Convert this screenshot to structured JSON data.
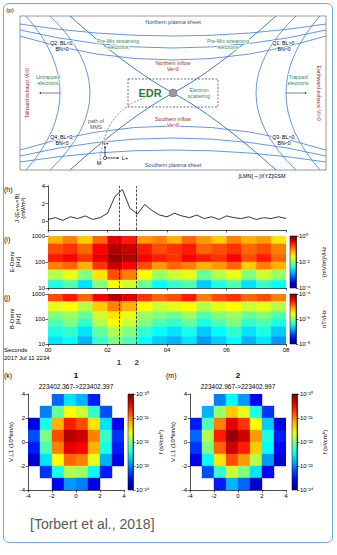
{
  "diagram": {
    "panel_label": "(p)",
    "northern_sheet": "Northern plasma sheet",
    "southern_sheet": "Southern plasma sheet",
    "q1": "Q1: BL>0, BN>0",
    "q2": "Q2: BL<0, BN>0",
    "q3": "Q3: BL>0, BN<0",
    "q4": "Q4: BL<0, BN<0",
    "streaming": "Pre-Mix streaming electrons",
    "northern_inflow": "Northern inflow Ve<0",
    "southern_inflow": "Southern inflow Ve>0",
    "tailward": "Tailward exhaust Vi<0",
    "earthward": "Earthward exhaust Vi>0",
    "untrapped": "Untrapped electrons",
    "trapped": "Trapped electrons",
    "path": "path of MMS",
    "edr": "EDR",
    "scattering": "Electron scattering",
    "frame": "[LMN] ~ [XYZ]GSM",
    "axis_n": "N+",
    "axis_l": "L+",
    "axis_m": "M"
  },
  "time_markers": {
    "line_style": "dashed",
    "items": [
      {
        "label": "1",
        "x": 2.382
      },
      {
        "label": "2",
        "x": 2.982
      }
    ]
  },
  "chart_data": [
    {
      "panel": "(h)",
      "type": "line",
      "y_label": "J·(E+vₑ×B)",
      "y_unit": "(nW/m³)",
      "x": [
        0,
        0.25,
        0.5,
        0.75,
        1,
        1.25,
        1.5,
        1.75,
        2,
        2.25,
        2.5,
        2.75,
        3,
        3.25,
        3.5,
        3.75,
        4,
        4.25,
        4.5,
        4.75,
        5,
        5.25,
        5.5,
        5.75,
        6,
        6.25,
        6.5,
        6.75,
        7,
        7.25,
        7.5,
        7.75,
        8
      ],
      "values": [
        0.2,
        0.4,
        0.1,
        0.5,
        0.3,
        0.6,
        0.2,
        0.4,
        0.9,
        2.8,
        3.6,
        1.5,
        0.8,
        1.9,
        1.2,
        0.7,
        0.5,
        0.9,
        0.6,
        0.4,
        0.7,
        0.3,
        0.5,
        0.2,
        0.6,
        0.4,
        0.3,
        0.5,
        0.2,
        0.4,
        0.3,
        0.5,
        0.3
      ],
      "color": "#000000",
      "line_style": "solid",
      "xlim": [
        0,
        8
      ],
      "xticks": [
        {
          "value": 0,
          "label": "00"
        },
        {
          "value": 2,
          "label": "02"
        },
        {
          "value": 4,
          "label": "04"
        },
        {
          "value": 6,
          "label": "06"
        },
        {
          "value": 8,
          "label": "08"
        }
      ],
      "ylim": [
        -1,
        4
      ],
      "yticks": [
        0,
        2,
        4
      ],
      "tick_labels": "y"
    },
    {
      "panel": "(i)",
      "type": "heatmap",
      "y_label": "E-Omni",
      "y_unit": "[Hz]",
      "log": "y",
      "x_edges": [
        0,
        0.5,
        1,
        1.5,
        2,
        2.5,
        3,
        3.5,
        4,
        4.5,
        5,
        5.5,
        6,
        6.5,
        7,
        7.5,
        8
      ],
      "y_edges": [
        1000,
        500,
        200,
        100,
        50,
        20,
        10
      ],
      "cells": [
        [
          -1.2,
          -1.0,
          -1.3,
          -0.9,
          -0.4,
          -0.6,
          -1.1,
          -1.0,
          -1.2,
          -0.9,
          -1.1,
          -1.3,
          -1.0,
          -1.2,
          -1.1,
          -1.4
        ],
        [
          -0.8,
          -0.7,
          -0.9,
          -0.5,
          -0.2,
          -0.3,
          -0.6,
          -0.8,
          -0.7,
          -0.6,
          -0.9,
          -0.8,
          -0.7,
          -0.9,
          -0.8,
          -1.0
        ],
        [
          -0.6,
          -0.5,
          -0.7,
          -0.4,
          -0.1,
          -0.2,
          -0.5,
          -0.6,
          -0.7,
          -0.5,
          -0.6,
          -0.7,
          -0.5,
          -0.8,
          -0.6,
          -0.9
        ],
        [
          -1.0,
          -0.9,
          -1.2,
          -0.7,
          -0.3,
          -0.5,
          -0.8,
          -1.1,
          -0.9,
          -1.0,
          -1.2,
          -1.1,
          -0.9,
          -1.3,
          -1.0,
          -1.2
        ],
        [
          -1.8,
          -1.6,
          -2.0,
          -1.4,
          -0.8,
          -1.0,
          -1.5,
          -1.9,
          -1.7,
          -1.6,
          -2.1,
          -1.8,
          -1.6,
          -2.0,
          -1.7,
          -1.9
        ],
        [
          -2.4,
          -2.2,
          -2.6,
          -2.0,
          -1.5,
          -1.7,
          -2.1,
          -2.5,
          -2.3,
          -2.2,
          -2.7,
          -2.4,
          -2.2,
          -2.6,
          -2.3,
          -2.5
        ]
      ],
      "xlim": [
        0,
        8
      ],
      "xticks": [
        {
          "value": 0,
          "label": "00"
        },
        {
          "value": 2,
          "label": "02"
        },
        {
          "value": 4,
          "label": "04"
        },
        {
          "value": 6,
          "label": "06"
        },
        {
          "value": 8,
          "label": "08"
        }
      ],
      "ylim": [
        10,
        1000
      ],
      "yticks": [
        10,
        100,
        1000
      ],
      "tick_labels": "y",
      "colorbar": {
        "label": "(mV/m)²/Hz",
        "range": [
          -4,
          0
        ],
        "ticks": [
          {
            "value": -4,
            "label": "10⁻⁴"
          },
          {
            "value": -2,
            "label": "10⁻²"
          },
          {
            "value": 0,
            "label": "10⁰"
          }
        ]
      }
    },
    {
      "panel": "(j)",
      "type": "heatmap",
      "y_label": "B-Omni",
      "y_unit": "[Hz]",
      "log": "y",
      "x_label": "Seconds",
      "x_sublabel": "2017 Jul 11 2234",
      "x_edges": [
        0,
        0.5,
        1,
        1.5,
        2,
        2.5,
        3,
        3.5,
        4,
        4.5,
        5,
        5.5,
        6,
        6.5,
        7,
        7.5,
        8
      ],
      "y_edges": [
        1000,
        500,
        200,
        100,
        50,
        20,
        10
      ],
      "cells": [
        [
          -4.8,
          -4.6,
          -4.9,
          -4.5,
          -4.2,
          -4.4,
          -4.7,
          -4.9,
          -4.8,
          -4.6,
          -5.0,
          -4.8,
          -4.7,
          -4.9,
          -4.8,
          -5.0
        ],
        [
          -5.6,
          -5.5,
          -5.8,
          -5.3,
          -5.0,
          -5.2,
          -5.5,
          -5.7,
          -5.6,
          -5.5,
          -5.8,
          -5.6,
          -5.5,
          -5.7,
          -5.6,
          -5.8
        ],
        [
          -6.0,
          -5.9,
          -6.1,
          -5.7,
          -5.4,
          -5.6,
          -5.9,
          -6.0,
          -6.1,
          -5.9,
          -6.2,
          -6.0,
          -5.9,
          -6.1,
          -6.0,
          -6.2
        ],
        [
          -6.2,
          -6.0,
          -6.3,
          -5.8,
          -5.5,
          -5.7,
          -6.0,
          -6.2,
          -6.3,
          -6.1,
          -6.4,
          -6.2,
          -6.0,
          -6.3,
          -6.2,
          -6.4
        ],
        [
          -6.4,
          -6.3,
          -6.6,
          -6.1,
          -5.8,
          -6.0,
          -6.3,
          -6.5,
          -6.6,
          -6.4,
          -6.7,
          -6.5,
          -6.3,
          -6.6,
          -6.4,
          -6.7
        ],
        [
          -6.6,
          -6.5,
          -6.8,
          -6.3,
          -6.0,
          -6.2,
          -6.5,
          -6.7,
          -6.8,
          -6.6,
          -6.9,
          -6.7,
          -6.5,
          -6.8,
          -6.6,
          -6.9
        ]
      ],
      "xlim": [
        0,
        8
      ],
      "xticks": [
        {
          "value": 0,
          "label": "00"
        },
        {
          "value": 2,
          "label": "02"
        },
        {
          "value": 4,
          "label": "04"
        },
        {
          "value": 6,
          "label": "06"
        },
        {
          "value": 8,
          "label": "08"
        }
      ],
      "ylim": [
        10,
        1000
      ],
      "yticks": [
        10,
        100,
        1000
      ],
      "tick_labels": true,
      "colorbar": {
        "label": "nT²/Hz",
        "range": [
          -8,
          -4
        ],
        "ticks": [
          {
            "value": -8,
            "label": "10⁻⁸"
          },
          {
            "value": -6,
            "label": "10⁻⁶"
          },
          {
            "value": -4,
            "label": "10⁻⁴"
          }
        ]
      }
    },
    {
      "panel": "(k)",
      "type": "heatmap",
      "title": "223402.367->223402.397",
      "event_label": "1",
      "y_label": "V⊥1 (10⁴km/s)",
      "x_edges": [
        -4,
        -3,
        -2,
        -1,
        0,
        1,
        2,
        3,
        4
      ],
      "y_edges": [
        4,
        3,
        2,
        1,
        0,
        -1,
        -2,
        -3,
        -4
      ],
      "cells": [
        [
          null,
          null,
          -23.1,
          -22.6,
          -22.8,
          -23.4,
          null,
          null
        ],
        [
          null,
          -23.0,
          -22.1,
          -21.5,
          -21.7,
          -22.3,
          -23.2,
          null
        ],
        [
          -23.6,
          -22.4,
          -21.2,
          -20.6,
          -20.8,
          -21.4,
          -22.6,
          -23.5
        ],
        [
          -23.2,
          -22.0,
          -20.8,
          -20.2,
          -20.3,
          -21.0,
          -22.3,
          -23.3
        ],
        [
          -23.4,
          -22.2,
          -21.0,
          -20.4,
          -20.5,
          -21.2,
          -22.4,
          -23.4
        ],
        [
          -23.7,
          -22.6,
          -21.5,
          -20.9,
          -21.0,
          -21.6,
          -22.8,
          -23.6
        ],
        [
          null,
          -23.3,
          -22.4,
          -21.8,
          -21.9,
          -22.5,
          -23.4,
          null
        ],
        [
          null,
          null,
          -23.5,
          -22.9,
          -23.0,
          -23.6,
          null,
          null
        ]
      ],
      "xlim": [
        -4,
        4
      ],
      "xticks": [
        -4,
        -2,
        0,
        2,
        4
      ],
      "ylim": [
        -4,
        4
      ],
      "yticks": [
        -4,
        -2,
        0,
        2,
        4
      ],
      "tick_labels": true,
      "colorbar": {
        "label": "f (s³/cm⁶)",
        "range": [
          -24,
          -20
        ],
        "ticks": [
          {
            "value": -24,
            "label": "10⁻²⁴"
          },
          {
            "value": -23,
            "label": "10⁻²³"
          },
          {
            "value": -22,
            "label": "10⁻²²"
          },
          {
            "value": -21,
            "label": "10⁻²¹"
          },
          {
            "value": -20,
            "label": "10⁻²⁰"
          }
        ]
      }
    },
    {
      "panel": "(m)",
      "type": "heatmap",
      "title": "223402.967->223402.997",
      "event_label": "2",
      "y_label": "V⊥1 (10⁴km/s)",
      "x_edges": [
        -4,
        -3,
        -2,
        -1,
        0,
        1,
        2,
        3,
        4
      ],
      "y_edges": [
        4,
        3,
        2,
        1,
        0,
        -1,
        -2,
        -3,
        -4
      ],
      "cells": [
        [
          null,
          null,
          -23.0,
          -22.5,
          -22.9,
          -23.5,
          null,
          null
        ],
        [
          null,
          -22.8,
          -21.9,
          -21.3,
          -21.6,
          -22.4,
          -23.3,
          null
        ],
        [
          -23.4,
          -22.2,
          -21.0,
          -20.4,
          -20.7,
          -21.5,
          -22.7,
          -23.6
        ],
        [
          -23.1,
          -21.8,
          -20.6,
          -20.1,
          -20.3,
          -21.1,
          -22.4,
          -23.4
        ],
        [
          -23.3,
          -22.0,
          -20.9,
          -20.3,
          -20.6,
          -21.3,
          -22.5,
          -23.5
        ],
        [
          -23.6,
          -22.5,
          -21.4,
          -20.8,
          -21.1,
          -21.8,
          -22.9,
          -23.7
        ],
        [
          null,
          -23.2,
          -22.3,
          -21.7,
          -22.0,
          -22.6,
          -23.5,
          null
        ],
        [
          null,
          null,
          -23.4,
          -22.8,
          -23.1,
          -23.7,
          null,
          null
        ]
      ],
      "xlim": [
        -4,
        4
      ],
      "xticks": [
        -4,
        -2,
        0,
        2,
        4
      ],
      "ylim": [
        -4,
        4
      ],
      "yticks": [
        -4,
        -2,
        0,
        2,
        4
      ],
      "tick_labels": true,
      "colorbar": {
        "label": "f (s³/cm⁶)",
        "range": [
          -24,
          -20
        ],
        "ticks": [
          {
            "value": -24,
            "label": "10⁻²⁴"
          },
          {
            "value": -23,
            "label": "10⁻²³"
          },
          {
            "value": -22,
            "label": "10⁻²²"
          },
          {
            "value": -21,
            "label": "10⁻²¹"
          },
          {
            "value": -20,
            "label": "10⁻²⁰"
          }
        ]
      }
    }
  ],
  "citation": "[Torbert et al., 2018]"
}
